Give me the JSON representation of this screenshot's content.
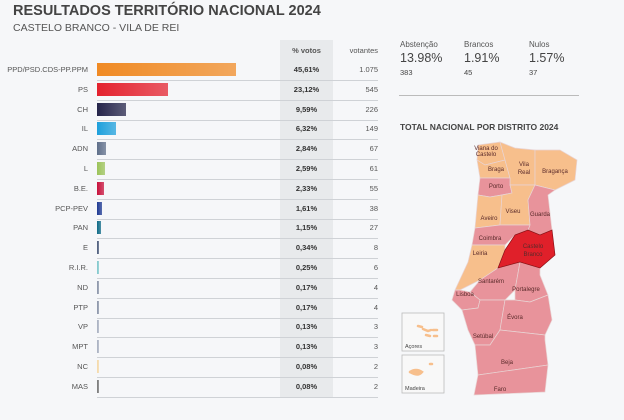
{
  "header": {
    "title": "RESULTADOS TERRITÓRIO NACIONAL 2024",
    "subtitle": "CASTELO BRANCO - VILA DE REI"
  },
  "table": {
    "col_pct": "% votos",
    "col_votes": "votantes",
    "rows": [
      {
        "name": "PPD/PSD.CDS-PP.PPM",
        "pct": "45,61%",
        "value": 45.61,
        "votes": "1.075",
        "color": "#f08a24"
      },
      {
        "name": "PS",
        "pct": "23,12%",
        "value": 23.12,
        "votes": "545",
        "color": "#e4222e"
      },
      {
        "name": "CH",
        "pct": "9,59%",
        "value": 9.59,
        "votes": "226",
        "color": "#25244a"
      },
      {
        "name": "IL",
        "pct": "6,32%",
        "value": 6.32,
        "votes": "149",
        "color": "#1ea0dc"
      },
      {
        "name": "ADN",
        "pct": "2,84%",
        "value": 2.84,
        "votes": "67",
        "color": "#5f6f8a"
      },
      {
        "name": "L",
        "pct": "2,59%",
        "value": 2.59,
        "votes": "61",
        "color": "#9cc35a"
      },
      {
        "name": "B.E.",
        "pct": "2,33%",
        "value": 2.33,
        "votes": "55",
        "color": "#c8123c"
      },
      {
        "name": "PCP-PEV",
        "pct": "1,61%",
        "value": 1.61,
        "votes": "38",
        "color": "#1f3a93"
      },
      {
        "name": "PAN",
        "pct": "1,15%",
        "value": 1.15,
        "votes": "27",
        "color": "#0e6a86"
      },
      {
        "name": "E",
        "pct": "0,34%",
        "value": 0.34,
        "votes": "8",
        "color": "#4a5a7a"
      },
      {
        "name": "R.I.R.",
        "pct": "0,25%",
        "value": 0.25,
        "votes": "6",
        "color": "#7fc8cc"
      },
      {
        "name": "ND",
        "pct": "0,17%",
        "value": 0.17,
        "votes": "4",
        "color": "#8a94a8"
      },
      {
        "name": "PTP",
        "pct": "0,17%",
        "value": 0.17,
        "votes": "4",
        "color": "#8a94a8"
      },
      {
        "name": "VP",
        "pct": "0,13%",
        "value": 0.13,
        "votes": "3",
        "color": "#a8b0c0"
      },
      {
        "name": "MPT",
        "pct": "0,13%",
        "value": 0.13,
        "votes": "3",
        "color": "#a8b0c0"
      },
      {
        "name": "NC",
        "pct": "0,08%",
        "value": 0.08,
        "votes": "2",
        "color": "#f5d9a8"
      },
      {
        "name": "MAS",
        "pct": "0,08%",
        "value": 0.08,
        "votes": "2",
        "color": "#777777"
      }
    ]
  },
  "stats": [
    {
      "label": "Abstenção",
      "pct": "13.98%",
      "count": "383"
    },
    {
      "label": "Brancos",
      "pct": "1.91%",
      "count": "45"
    },
    {
      "label": "Nulos",
      "pct": "1.57%",
      "count": "37"
    }
  ],
  "map": {
    "title": "TOTAL NACIONAL POR DISTRITO 2024",
    "colors": {
      "orange": "#f7bf8c",
      "pink": "#e8939b",
      "selected": "#e0202a"
    },
    "selected": "Castelo Branco",
    "districts": [
      {
        "name": "Viana do Castelo",
        "fill": "orange"
      },
      {
        "name": "Braga",
        "fill": "orange"
      },
      {
        "name": "Vila Real",
        "fill": "orange"
      },
      {
        "name": "Bragança",
        "fill": "orange"
      },
      {
        "name": "Porto",
        "fill": "pink"
      },
      {
        "name": "Aveiro",
        "fill": "orange"
      },
      {
        "name": "Viseu",
        "fill": "orange"
      },
      {
        "name": "Guarda",
        "fill": "pink"
      },
      {
        "name": "Coimbra",
        "fill": "pink"
      },
      {
        "name": "Castelo Branco",
        "fill": "selected"
      },
      {
        "name": "Leiria",
        "fill": "orange"
      },
      {
        "name": "Santarém",
        "fill": "pink"
      },
      {
        "name": "Lisboa",
        "fill": "pink"
      },
      {
        "name": "Portalegre",
        "fill": "pink"
      },
      {
        "name": "Setúbal",
        "fill": "pink"
      },
      {
        "name": "Évora",
        "fill": "pink"
      },
      {
        "name": "Beja",
        "fill": "pink"
      },
      {
        "name": "Faro",
        "fill": "pink"
      }
    ],
    "insets": [
      {
        "name": "Açores",
        "fill": "orange"
      },
      {
        "name": "Madeira",
        "fill": "orange"
      }
    ]
  }
}
